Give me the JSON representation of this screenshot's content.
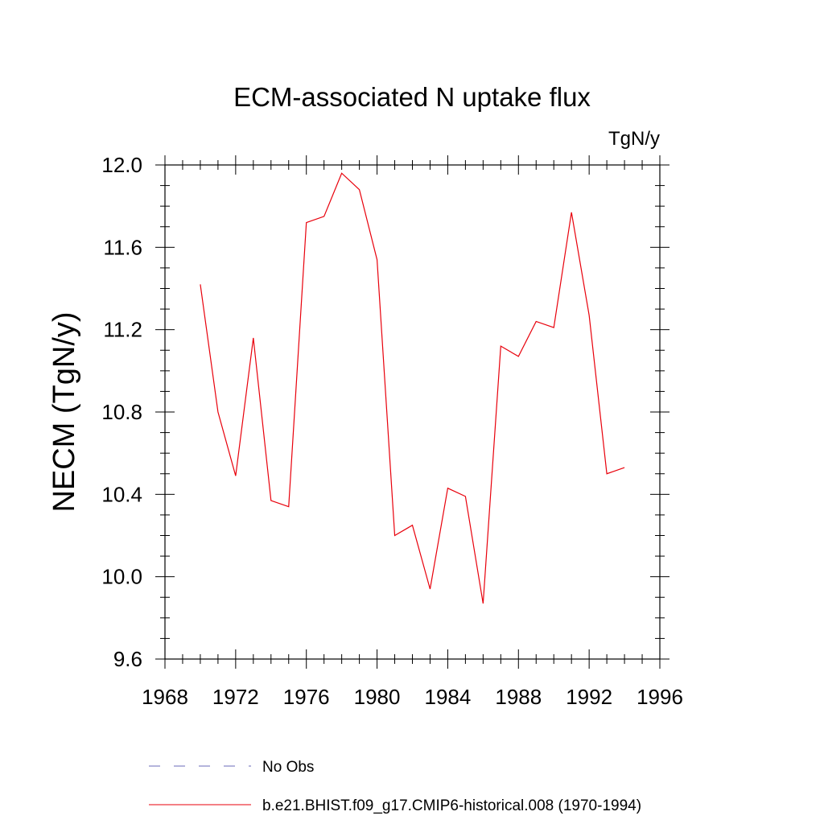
{
  "chart_data": {
    "type": "line",
    "title": "ECM-associated N uptake flux",
    "units_label": "TgN/y",
    "ylabel": "NECM  (TgN/y)",
    "xlabel": "",
    "xlim": [
      1968,
      1996
    ],
    "ylim": [
      9.6,
      12.0
    ],
    "x_ticks": [
      "1968",
      "1972",
      "1976",
      "1980",
      "1984",
      "1988",
      "1992",
      "1996"
    ],
    "y_ticks": [
      "9.6",
      "10.0",
      "10.4",
      "10.8",
      "11.2",
      "11.6",
      "12.0"
    ],
    "grid": false,
    "series": [
      {
        "name": "b.e21.BHIST.f09_g17.CMIP6-historical.008 (1970-1994)",
        "color": "#e8000b",
        "style": "solid",
        "x": [
          1970,
          1971,
          1972,
          1973,
          1974,
          1975,
          1976,
          1977,
          1978,
          1979,
          1980,
          1981,
          1982,
          1983,
          1984,
          1985,
          1986,
          1987,
          1988,
          1989,
          1990,
          1991,
          1992,
          1993,
          1994
        ],
        "y": [
          11.42,
          10.8,
          10.49,
          11.16,
          10.37,
          10.34,
          11.72,
          11.75,
          11.96,
          11.88,
          11.54,
          10.2,
          10.25,
          9.94,
          10.43,
          10.39,
          9.87,
          11.12,
          11.07,
          11.24,
          11.21,
          11.77,
          11.27,
          10.5,
          10.53
        ]
      }
    ],
    "legend": {
      "placement": "bottom",
      "entries": [
        {
          "label": "No Obs",
          "color": "#6a6ab8",
          "style": "dashed"
        },
        {
          "label": "b.e21.BHIST.f09_g17.CMIP6-historical.008 (1970-1994)",
          "color": "#e8000b",
          "style": "solid"
        }
      ]
    }
  }
}
